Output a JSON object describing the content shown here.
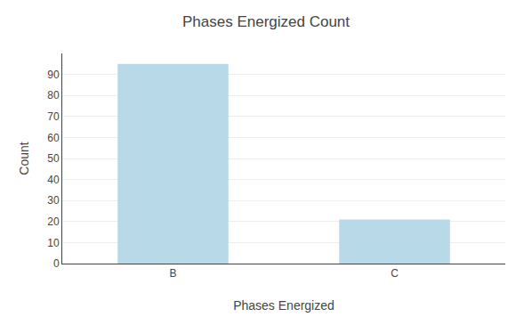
{
  "chart_data": {
    "type": "bar",
    "title": "Phases Energized Count",
    "categories": [
      "B",
      "C"
    ],
    "values": [
      95,
      21
    ],
    "color": "#b8d9e8",
    "xlabel": "Phases Energized",
    "ylabel": "Count",
    "ylim": [
      0,
      100
    ],
    "yticks": [
      0,
      10,
      20,
      30,
      40,
      50,
      60,
      70,
      80,
      90
    ],
    "grid": true
  }
}
